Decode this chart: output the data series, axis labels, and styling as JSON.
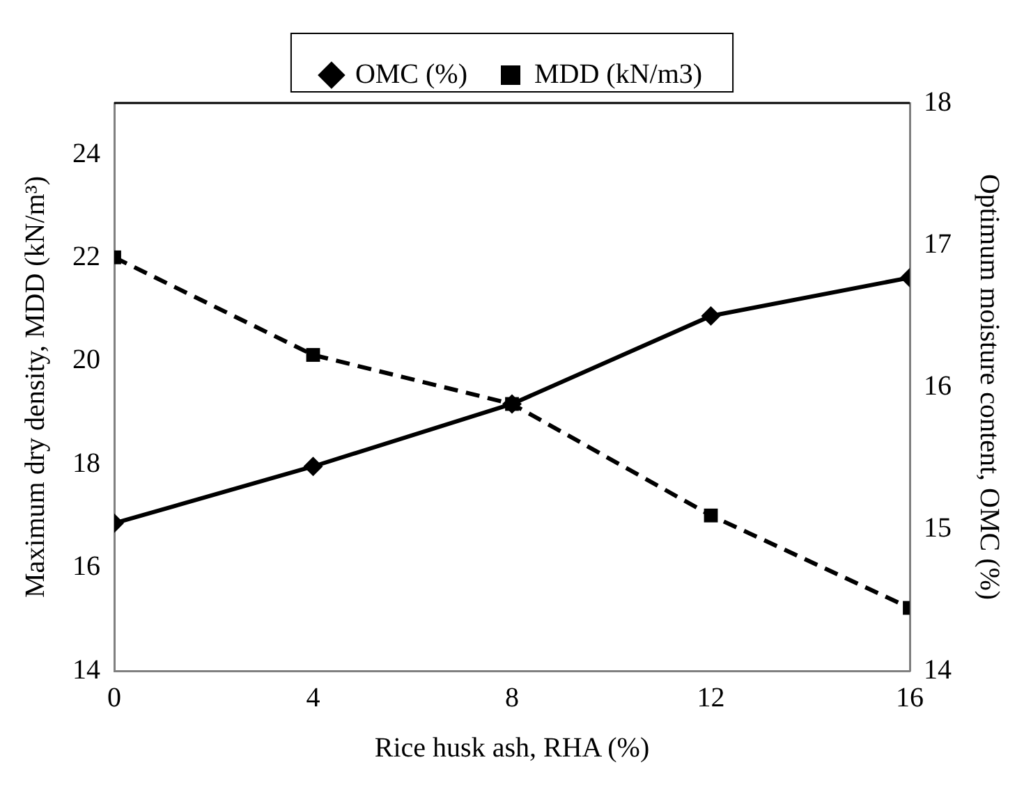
{
  "chart_data": {
    "type": "line",
    "xlabel": "Rice husk ash, RHA (%)",
    "ylabel": "Maximum dry density, MDD (kN/m³)",
    "y2label": "Optimum moisture content, OMC (%)",
    "x": [
      0,
      4,
      8,
      12,
      16
    ],
    "xlim": [
      0,
      16
    ],
    "xticks": [
      0,
      4,
      8,
      12,
      16
    ],
    "ylim": [
      14,
      25
    ],
    "yticks": [
      14,
      16,
      18,
      20,
      22,
      24
    ],
    "y2lim": [
      14,
      18
    ],
    "y2ticks": [
      14,
      15,
      16,
      17,
      18
    ],
    "series": [
      {
        "name": "OMC (%)",
        "color": "#000000",
        "axis": "y2",
        "marker": "diamond",
        "line_style": "solid",
        "values": [
          15.04,
          15.44,
          15.88,
          16.5,
          16.77
        ]
      },
      {
        "name": "MDD (kN/m3)",
        "color": "#000000",
        "axis": "y",
        "marker": "square",
        "line_style": "dashed",
        "values": [
          22.01,
          20.12,
          19.17,
          17.01,
          15.22
        ]
      }
    ],
    "legend": "top",
    "grid": false
  }
}
